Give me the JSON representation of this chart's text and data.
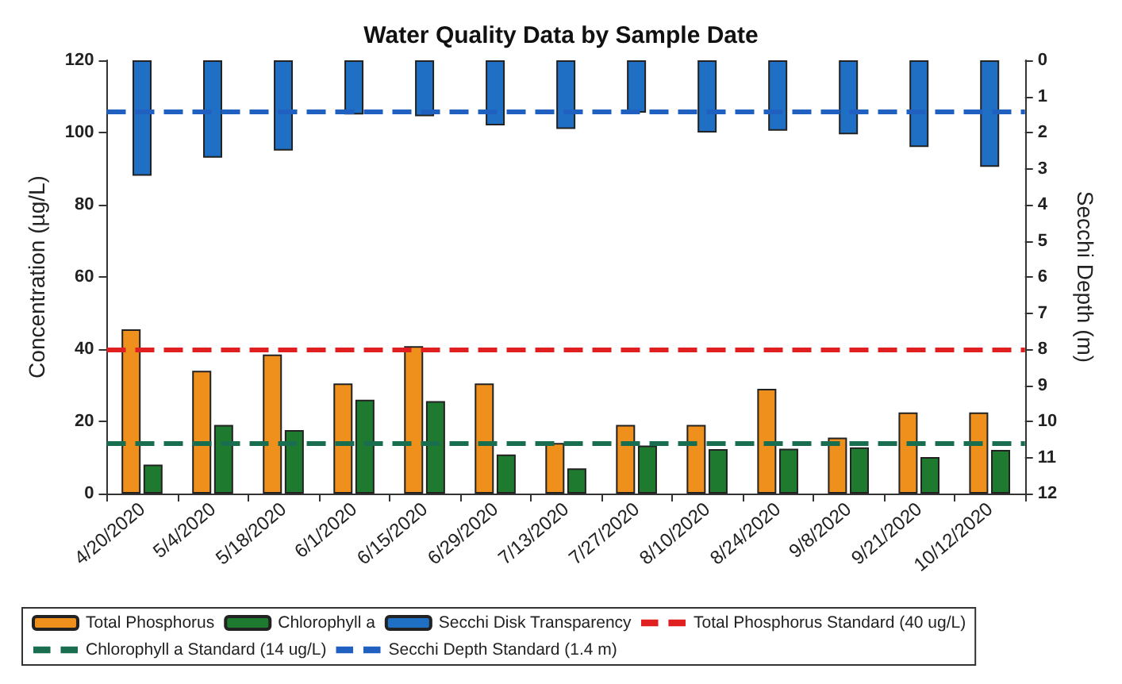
{
  "chart_data": {
    "type": "bar",
    "title": "Water Quality Data by Sample Date",
    "ylabel": "Concentration (µg/L)",
    "y2label": "Secchi Depth (m)",
    "categories": [
      "4/20/2020",
      "5/4/2020",
      "5/18/2020",
      "6/1/2020",
      "6/15/2020",
      "6/29/2020",
      "7/13/2020",
      "7/27/2020",
      "8/10/2020",
      "8/24/2020",
      "9/8/2020",
      "9/21/2020",
      "10/12/2020"
    ],
    "series": [
      {
        "name": "Total Phosphorus",
        "color": "#f0901c",
        "values": [
          45.5,
          34,
          38.5,
          30.5,
          40.8,
          30.5,
          14,
          19,
          19,
          29,
          15.5,
          22.5,
          22.5
        ]
      },
      {
        "name": "Chlorophyll a",
        "color": "#1e7a2e",
        "values": [
          8,
          19,
          17.6,
          26,
          25.6,
          10.8,
          7,
          13.3,
          12.3,
          12.4,
          12.8,
          10.1,
          12.1
        ]
      },
      {
        "name": "Secchi Disk Transparency",
        "color": "#1f6fc4",
        "axis": "y2",
        "values": [
          3.2,
          2.7,
          2.5,
          1.5,
          1.55,
          1.8,
          1.9,
          1.45,
          2,
          1.95,
          2.05,
          2.4,
          2.95
        ]
      }
    ],
    "ylim": [
      0,
      120
    ],
    "yticks": [
      0,
      20,
      40,
      60,
      80,
      100,
      120
    ],
    "y2lim": [
      12,
      0
    ],
    "y2ticks": [
      0,
      1,
      2,
      3,
      4,
      5,
      6,
      7,
      8,
      9,
      10,
      11,
      12
    ],
    "ref_lines": [
      {
        "axis": "y",
        "value": 40,
        "label": "Total Phosphorus Standard (40 ug/L)",
        "color": "#e02020",
        "line_style": "dashed"
      },
      {
        "axis": "y",
        "value": 14,
        "label": "Chlorophyll a Standard (14 ug/L)",
        "color": "#1a6e50",
        "line_style": "dashed"
      },
      {
        "axis": "y2",
        "value": 1.4,
        "label": "Secchi Depth Standard (1.4 m)",
        "color": "#2060c0",
        "line_style": "dashed"
      }
    ],
    "grid": false,
    "legend": "bottom"
  }
}
